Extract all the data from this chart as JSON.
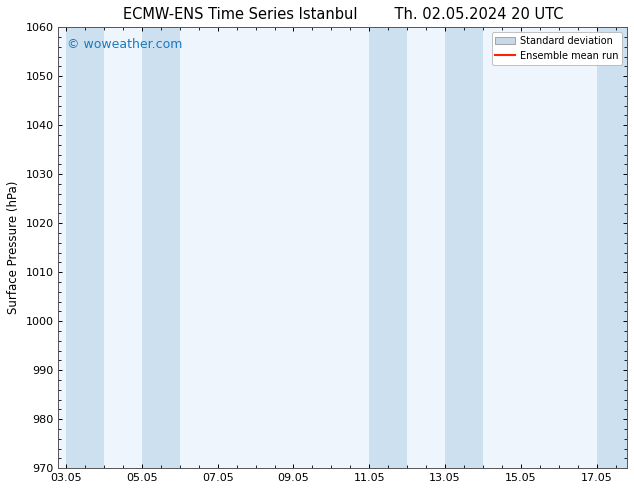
{
  "title_left": "ECMW-ENS Time Series Istanbul",
  "title_right": "Th. 02.05.2024 20 UTC",
  "ylabel": "Surface Pressure (hPa)",
  "xlabel_ticks": [
    "03.05",
    "05.05",
    "07.05",
    "09.05",
    "11.05",
    "13.05",
    "15.05",
    "17.05"
  ],
  "tick_positions": [
    0,
    2,
    4,
    6,
    8,
    10,
    12,
    14
  ],
  "xlim": [
    -0.2,
    14.8
  ],
  "ylim": [
    970,
    1060
  ],
  "yticks": [
    970,
    980,
    990,
    1000,
    1010,
    1020,
    1030,
    1040,
    1050,
    1060
  ],
  "background_color": "#ffffff",
  "plot_bg_color": "#eef5fc",
  "watermark_text": "© woweather.com",
  "watermark_color": "#1a7abf",
  "shaded_bands": [
    {
      "xmin": 0.0,
      "xmax": 1.0,
      "color": "#cce0f0"
    },
    {
      "xmin": 2.0,
      "xmax": 3.0,
      "color": "#cce0f0"
    },
    {
      "xmin": 8.0,
      "xmax": 9.0,
      "color": "#cce0f0"
    },
    {
      "xmin": 10.0,
      "xmax": 11.0,
      "color": "#cce0f0"
    },
    {
      "xmin": 14.0,
      "xmax": 14.8,
      "color": "#cce0f0"
    }
  ],
  "legend_std_color": "#c8d8e8",
  "legend_std_edge": "#888888",
  "legend_mean_color": "#ff2200",
  "spine_color": "#555555",
  "title_fontsize": 10.5,
  "tick_fontsize": 8,
  "ylabel_fontsize": 8.5,
  "watermark_fontsize": 9
}
